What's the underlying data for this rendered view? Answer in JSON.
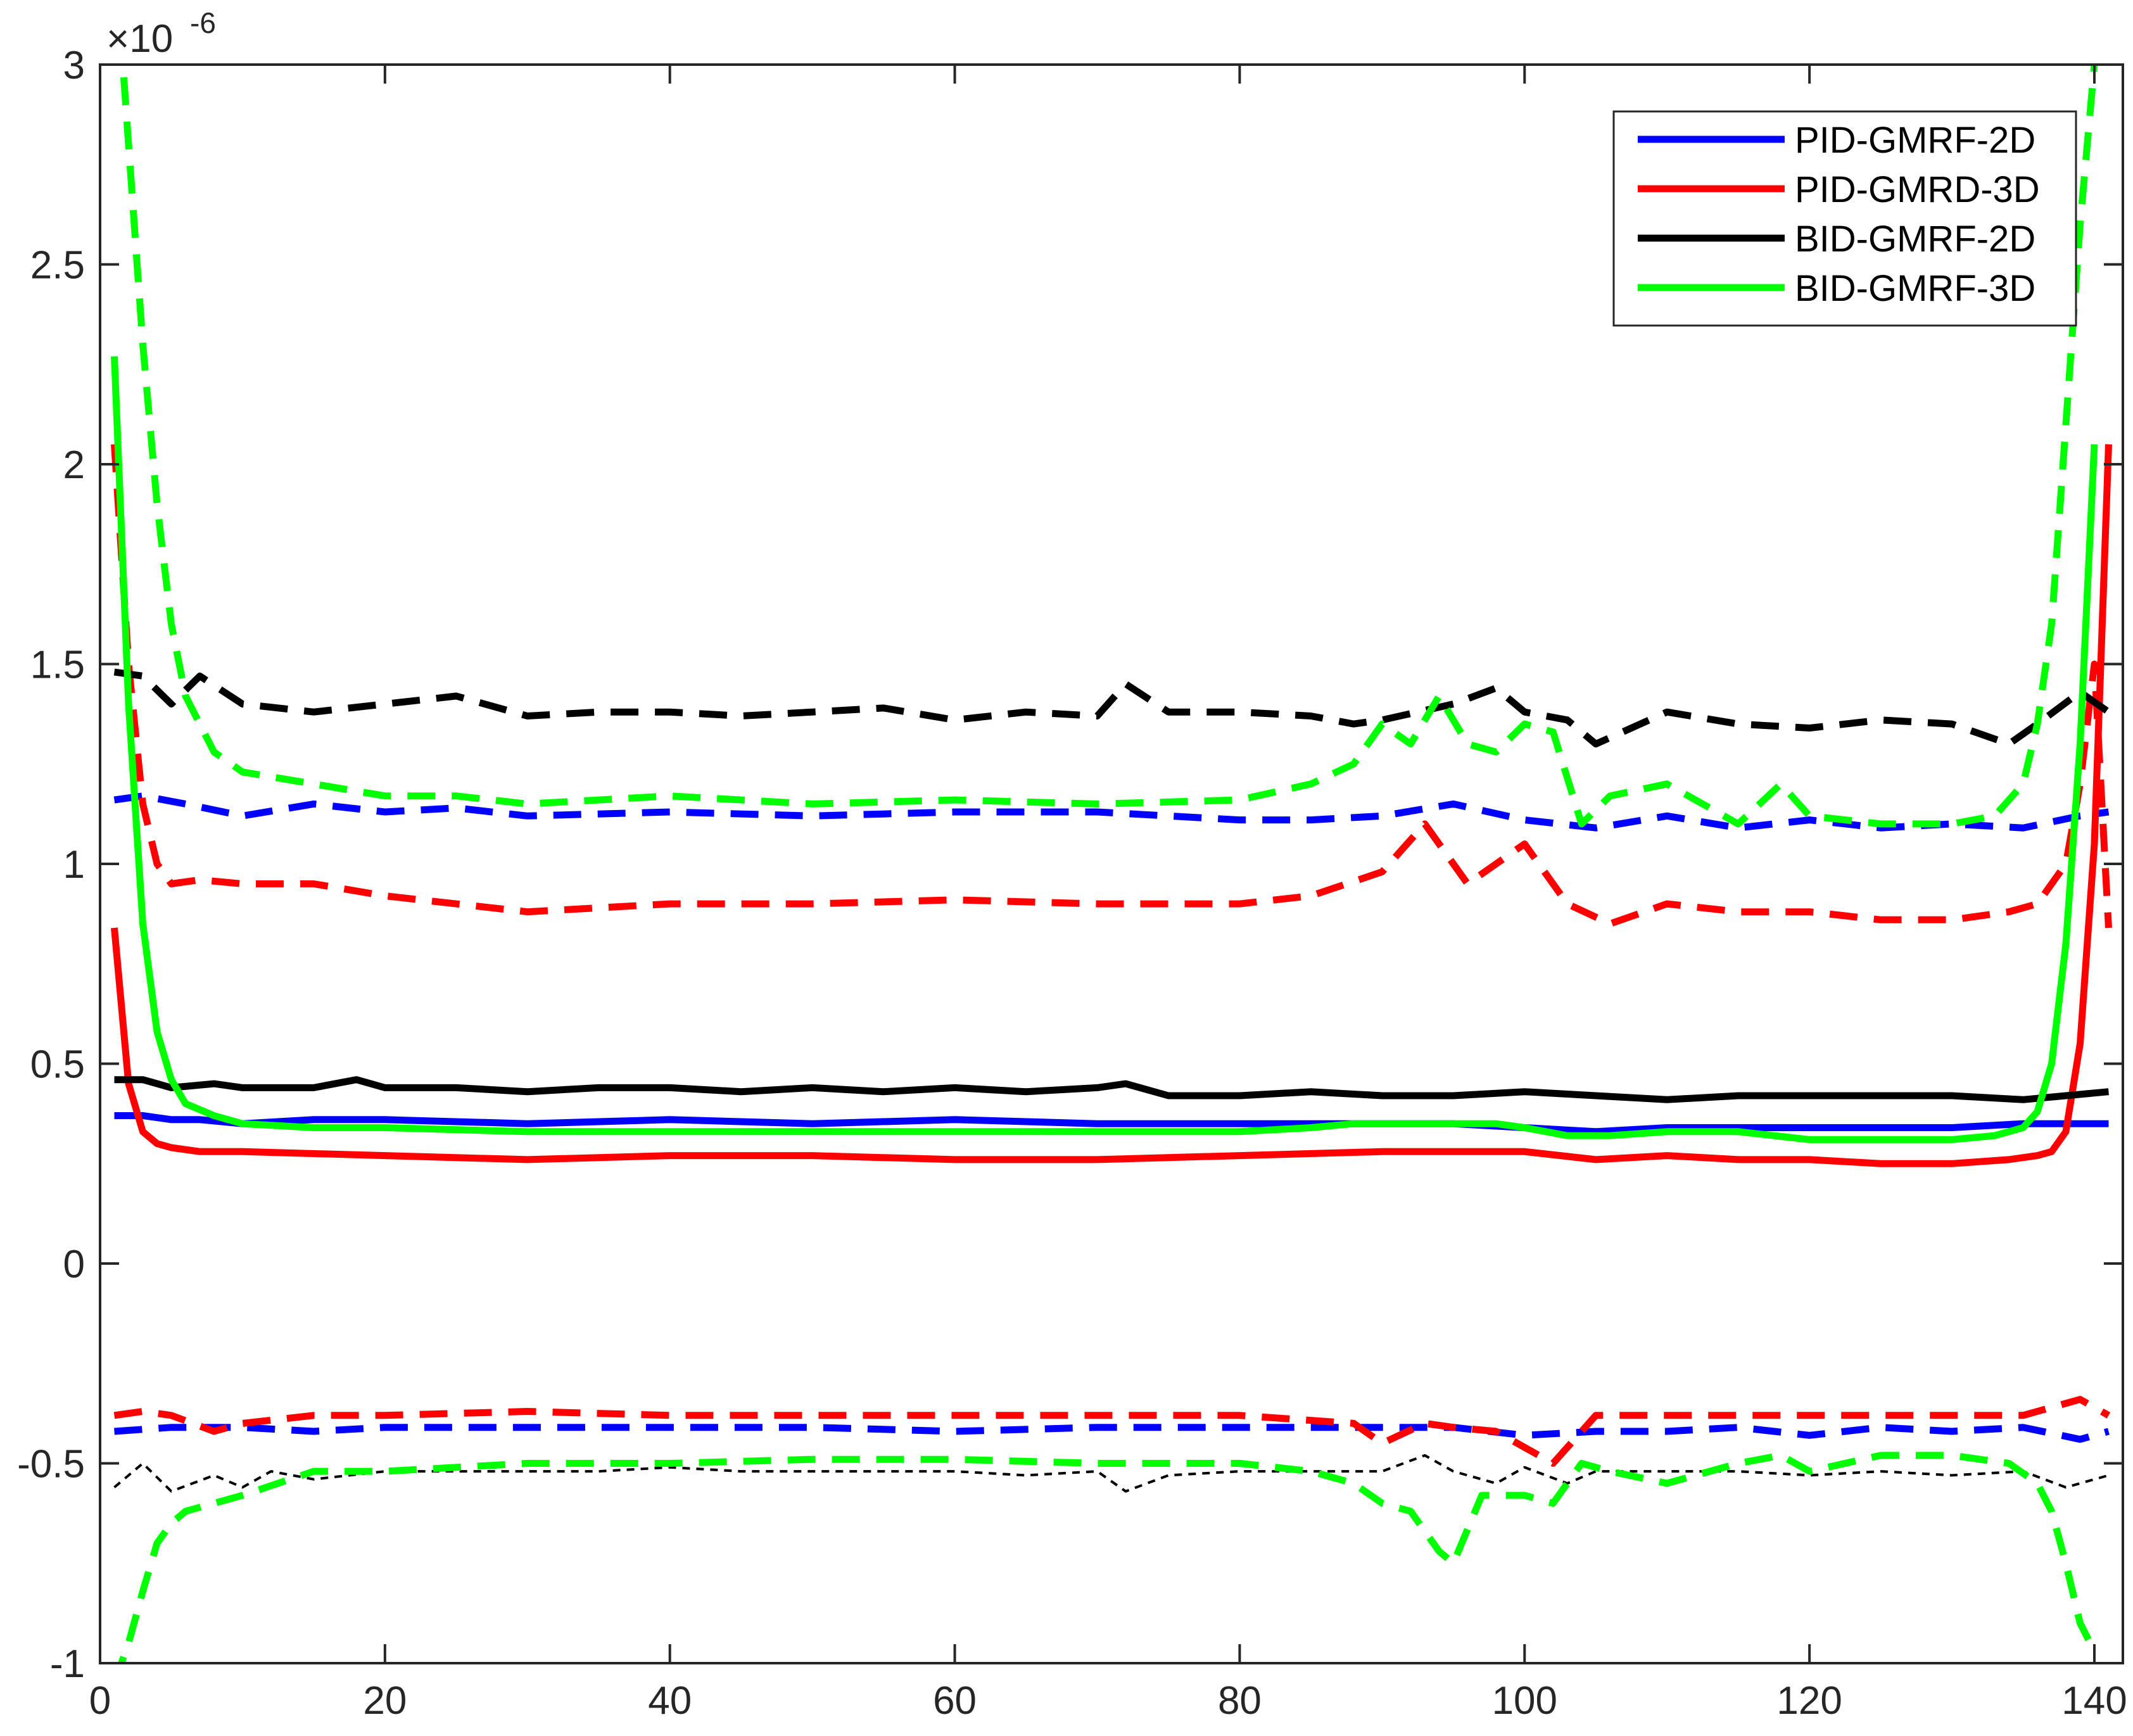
{
  "chart_data": {
    "type": "line",
    "title": "",
    "xlabel": "",
    "ylabel": "",
    "exponent_label": "×10",
    "exponent_power": "-6",
    "xlim": [
      0,
      142
    ],
    "ylim": [
      -1,
      3
    ],
    "xticks": [
      0,
      20,
      40,
      60,
      80,
      100,
      120,
      140
    ],
    "yticks": [
      -1,
      -0.5,
      0,
      0.5,
      1,
      1.5,
      2,
      2.5,
      3
    ],
    "xtick_labels": [
      "0",
      "20",
      "40",
      "60",
      "80",
      "100",
      "120",
      "140"
    ],
    "ytick_labels": [
      "-1",
      "-0.5",
      "0",
      "0.5",
      "1",
      "1.5",
      "2",
      "2.5",
      "3"
    ],
    "grid": false,
    "legend_position": "top-right",
    "legend": [
      {
        "name": "PID-GMRF-2D",
        "color": "#0000ff"
      },
      {
        "name": "PID-GMRD-3D",
        "color": "#ff0000"
      },
      {
        "name": "BID-GMRF-2D",
        "color": "#000000"
      },
      {
        "name": "BID-GMRF-3D",
        "color": "#00ff00"
      }
    ],
    "series": [
      {
        "style": "solid",
        "color": "#0000ff",
        "x": [
          1,
          3,
          5,
          7,
          10,
          15,
          20,
          30,
          40,
          50,
          60,
          70,
          80,
          88,
          95,
          100,
          105,
          110,
          115,
          120,
          125,
          130,
          135,
          139,
          141
        ],
        "y": [
          0.37,
          0.37,
          0.36,
          0.36,
          0.35,
          0.36,
          0.36,
          0.35,
          0.36,
          0.35,
          0.36,
          0.35,
          0.35,
          0.35,
          0.35,
          0.34,
          0.33,
          0.34,
          0.34,
          0.34,
          0.34,
          0.34,
          0.35,
          0.35,
          0.35
        ]
      },
      {
        "style": "dashed",
        "color": "#0000ff",
        "x": [
          1,
          3,
          6,
          10,
          15,
          20,
          25,
          30,
          40,
          50,
          60,
          70,
          80,
          85,
          90,
          95,
          100,
          105,
          110,
          115,
          120,
          125,
          130,
          135,
          139,
          141
        ],
        "y": [
          1.16,
          1.17,
          1.15,
          1.12,
          1.15,
          1.13,
          1.14,
          1.12,
          1.13,
          1.12,
          1.13,
          1.13,
          1.11,
          1.11,
          1.12,
          1.15,
          1.11,
          1.09,
          1.12,
          1.09,
          1.11,
          1.09,
          1.1,
          1.09,
          1.12,
          1.13
        ]
      },
      {
        "style": "dashed",
        "color": "#0000ff",
        "x": [
          1,
          5,
          10,
          15,
          20,
          30,
          40,
          50,
          60,
          70,
          80,
          90,
          95,
          100,
          105,
          110,
          115,
          120,
          125,
          130,
          135,
          139,
          141
        ],
        "y": [
          -0.42,
          -0.41,
          -0.41,
          -0.42,
          -0.41,
          -0.41,
          -0.41,
          -0.41,
          -0.42,
          -0.41,
          -0.41,
          -0.41,
          -0.41,
          -0.43,
          -0.42,
          -0.42,
          -0.41,
          -0.43,
          -0.41,
          -0.42,
          -0.41,
          -0.44,
          -0.42
        ]
      },
      {
        "style": "solid",
        "color": "#ff0000",
        "x": [
          1,
          2,
          3,
          4,
          5,
          7,
          10,
          20,
          30,
          40,
          50,
          60,
          70,
          80,
          90,
          95,
          100,
          105,
          110,
          115,
          120,
          125,
          130,
          134,
          136,
          137,
          138,
          139,
          140,
          141
        ],
        "y": [
          0.84,
          0.45,
          0.33,
          0.3,
          0.29,
          0.28,
          0.28,
          0.27,
          0.26,
          0.27,
          0.27,
          0.26,
          0.26,
          0.27,
          0.28,
          0.28,
          0.28,
          0.26,
          0.27,
          0.26,
          0.26,
          0.25,
          0.25,
          0.26,
          0.27,
          0.28,
          0.33,
          0.55,
          1.05,
          2.05
        ]
      },
      {
        "style": "dashed",
        "color": "#ff0000",
        "x": [
          1,
          2,
          3,
          4,
          5,
          7,
          10,
          15,
          20,
          30,
          40,
          50,
          60,
          70,
          80,
          85,
          90,
          93,
          96,
          100,
          103,
          106,
          110,
          115,
          120,
          125,
          130,
          134,
          136,
          138,
          139,
          140,
          141
        ],
        "y": [
          2.05,
          1.5,
          1.15,
          1.0,
          0.95,
          0.96,
          0.95,
          0.95,
          0.92,
          0.88,
          0.9,
          0.9,
          0.91,
          0.9,
          0.9,
          0.92,
          0.98,
          1.1,
          0.95,
          1.05,
          0.9,
          0.85,
          0.9,
          0.88,
          0.88,
          0.86,
          0.86,
          0.88,
          0.9,
          1.0,
          1.2,
          1.5,
          0.84
        ]
      },
      {
        "style": "dashed",
        "color": "#ff0000",
        "x": [
          1,
          3,
          5,
          8,
          10,
          15,
          20,
          30,
          40,
          50,
          60,
          70,
          80,
          88,
          90,
          93,
          95,
          98,
          100,
          102,
          105,
          110,
          115,
          120,
          125,
          130,
          135,
          139,
          141
        ],
        "y": [
          -0.38,
          -0.37,
          -0.38,
          -0.42,
          -0.4,
          -0.38,
          -0.38,
          -0.37,
          -0.38,
          -0.38,
          -0.38,
          -0.38,
          -0.38,
          -0.4,
          -0.45,
          -0.4,
          -0.41,
          -0.42,
          -0.46,
          -0.5,
          -0.38,
          -0.38,
          -0.38,
          -0.38,
          -0.38,
          -0.38,
          -0.38,
          -0.34,
          -0.38
        ]
      },
      {
        "style": "solid",
        "color": "#000000",
        "x": [
          1,
          3,
          5,
          8,
          10,
          15,
          18,
          20,
          25,
          30,
          35,
          40,
          45,
          50,
          55,
          60,
          65,
          70,
          72,
          75,
          80,
          85,
          90,
          95,
          100,
          105,
          110,
          115,
          120,
          125,
          130,
          135,
          138,
          141
        ],
        "y": [
          0.46,
          0.46,
          0.44,
          0.45,
          0.44,
          0.44,
          0.46,
          0.44,
          0.44,
          0.43,
          0.44,
          0.44,
          0.43,
          0.44,
          0.43,
          0.44,
          0.43,
          0.44,
          0.45,
          0.42,
          0.42,
          0.43,
          0.42,
          0.42,
          0.43,
          0.42,
          0.41,
          0.42,
          0.42,
          0.42,
          0.42,
          0.41,
          0.42,
          0.43
        ]
      },
      {
        "style": "dashed",
        "color": "#000000",
        "x": [
          1,
          3,
          5,
          7,
          10,
          15,
          20,
          25,
          30,
          35,
          40,
          45,
          50,
          55,
          60,
          65,
          70,
          72,
          75,
          80,
          85,
          88,
          90,
          95,
          98,
          100,
          103,
          105,
          110,
          115,
          120,
          125,
          130,
          134,
          136,
          139,
          141
        ],
        "y": [
          1.48,
          1.47,
          1.4,
          1.47,
          1.4,
          1.38,
          1.4,
          1.42,
          1.37,
          1.38,
          1.38,
          1.37,
          1.38,
          1.39,
          1.36,
          1.38,
          1.37,
          1.45,
          1.38,
          1.38,
          1.37,
          1.35,
          1.36,
          1.4,
          1.44,
          1.38,
          1.36,
          1.3,
          1.38,
          1.35,
          1.34,
          1.36,
          1.35,
          1.3,
          1.35,
          1.43,
          1.38
        ]
      },
      {
        "style": "dotted",
        "color": "#000000",
        "x": [
          1,
          3,
          5,
          8,
          10,
          12,
          15,
          20,
          25,
          30,
          35,
          40,
          45,
          50,
          55,
          60,
          65,
          70,
          72,
          75,
          80,
          85,
          90,
          93,
          95,
          98,
          100,
          103,
          105,
          110,
          115,
          120,
          125,
          130,
          135,
          138,
          141
        ],
        "y": [
          -0.56,
          -0.5,
          -0.57,
          -0.53,
          -0.56,
          -0.52,
          -0.54,
          -0.52,
          -0.52,
          -0.52,
          -0.52,
          -0.51,
          -0.52,
          -0.52,
          -0.52,
          -0.52,
          -0.53,
          -0.52,
          -0.57,
          -0.53,
          -0.52,
          -0.52,
          -0.52,
          -0.48,
          -0.52,
          -0.55,
          -0.51,
          -0.55,
          -0.52,
          -0.52,
          -0.52,
          -0.53,
          -0.52,
          -0.53,
          -0.52,
          -0.56,
          -0.53
        ]
      },
      {
        "style": "solid",
        "color": "#00ff00",
        "x": [
          1,
          2,
          3,
          4,
          5,
          6,
          8,
          10,
          15,
          20,
          30,
          40,
          50,
          60,
          70,
          80,
          85,
          88,
          92,
          95,
          98,
          100,
          103,
          106,
          110,
          115,
          120,
          125,
          130,
          133,
          135,
          136,
          137,
          138,
          139,
          140
        ],
        "y": [
          2.27,
          1.4,
          0.85,
          0.58,
          0.46,
          0.4,
          0.37,
          0.35,
          0.34,
          0.34,
          0.33,
          0.33,
          0.33,
          0.33,
          0.33,
          0.33,
          0.34,
          0.35,
          0.35,
          0.35,
          0.35,
          0.34,
          0.32,
          0.32,
          0.33,
          0.33,
          0.31,
          0.31,
          0.31,
          0.32,
          0.34,
          0.38,
          0.5,
          0.8,
          1.3,
          2.05
        ]
      },
      {
        "style": "dashed",
        "color": "#00ff00",
        "x": [
          1,
          2,
          3,
          4,
          5,
          6,
          7,
          8,
          10,
          15,
          20,
          25,
          30,
          40,
          50,
          60,
          70,
          80,
          85,
          88,
          90,
          92,
          94,
          96,
          98,
          100,
          102,
          104,
          106,
          110,
          115,
          118,
          120,
          125,
          130,
          133,
          135,
          136,
          137,
          138,
          139,
          140
        ],
        "y": [
          3.3,
          2.8,
          2.3,
          1.9,
          1.6,
          1.42,
          1.35,
          1.28,
          1.23,
          1.2,
          1.17,
          1.17,
          1.15,
          1.17,
          1.15,
          1.16,
          1.15,
          1.16,
          1.2,
          1.25,
          1.35,
          1.3,
          1.42,
          1.3,
          1.28,
          1.35,
          1.33,
          1.1,
          1.17,
          1.2,
          1.1,
          1.2,
          1.12,
          1.1,
          1.1,
          1.12,
          1.2,
          1.35,
          1.6,
          2.1,
          2.6,
          3.0
        ]
      },
      {
        "style": "dashed",
        "color": "#00ff00",
        "x": [
          1,
          2,
          3,
          4,
          5,
          6,
          8,
          10,
          15,
          20,
          30,
          40,
          50,
          60,
          70,
          80,
          85,
          88,
          90,
          92,
          94,
          95,
          97,
          100,
          102,
          104,
          106,
          110,
          115,
          118,
          120,
          125,
          130,
          134,
          136,
          137,
          138,
          139,
          140
        ],
        "y": [
          -1.05,
          -0.95,
          -0.82,
          -0.7,
          -0.65,
          -0.62,
          -0.6,
          -0.58,
          -0.52,
          -0.52,
          -0.5,
          -0.5,
          -0.49,
          -0.49,
          -0.5,
          -0.5,
          -0.52,
          -0.55,
          -0.6,
          -0.62,
          -0.72,
          -0.75,
          -0.58,
          -0.58,
          -0.6,
          -0.5,
          -0.52,
          -0.55,
          -0.5,
          -0.48,
          -0.52,
          -0.48,
          -0.48,
          -0.5,
          -0.55,
          -0.62,
          -0.75,
          -0.9,
          -0.97
        ]
      }
    ]
  }
}
